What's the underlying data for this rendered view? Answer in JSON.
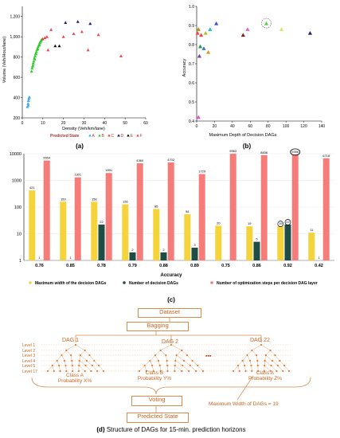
{
  "panel_a": {
    "caption": "(a)",
    "xlabel": "Density (Veh/km/lane)",
    "ylabel": "Volume (Veh/Hour/lane)",
    "xticks": [
      "0",
      "10",
      "20",
      "30",
      "40",
      "50",
      "60"
    ],
    "yticks": [
      "200",
      "400",
      "600",
      "800",
      "1,000",
      "1,200"
    ],
    "legend_title": "Predicted State",
    "legend_items": [
      "A",
      "B",
      "C",
      "D",
      "E",
      "F"
    ],
    "colors": {
      "A": "#3fa9e6",
      "B": "#33cc33",
      "C": "#e84a4a",
      "D": "#1f1f6e",
      "E": "#111111",
      "F": "#e84a4a"
    }
  },
  "panel_b": {
    "caption": "(b)",
    "xlabel": "Maximum Depth of Decision DAGs",
    "ylabel": "Accuracy",
    "xticks": [
      "0",
      "20",
      "40",
      "60",
      "80",
      "100",
      "120",
      "140"
    ],
    "yticks": [
      "0.4",
      "0.5",
      "0.6",
      "0.7",
      "0.8",
      "0.9",
      "1.0"
    ]
  },
  "panel_c": {
    "caption": "(c)",
    "xlabel": "Accuracy",
    "yticks": [
      "1",
      "10",
      "100",
      "1000",
      "10000"
    ],
    "legend": [
      "Maximum width of the decision DAGs",
      "Number of decision DAGs",
      "Number of optimization steps per decision DAG layer"
    ]
  },
  "panel_d": {
    "caption": "Structure of DAGs for 15-min. prediction horizons",
    "caption_prefix": "(d)",
    "dataset": "Dataset",
    "bagging": "Bagging",
    "dag1": "DAG 1",
    "dag2": "DAG 2",
    "dag22": "DAG 22",
    "ellipsis": "▪▪▪",
    "class1": "Class A",
    "prob1": "Probability X%",
    "class2": "Class B",
    "prob2": "Probability Y%",
    "class3": "Class A",
    "prob3": "Probability Z%",
    "voting": "Voting",
    "predicted": "Predicted State",
    "max_width": "Maximum Width of DAGs = 19",
    "levels": [
      "Level 1",
      "Level 2",
      "Level 3",
      "Level 4",
      "Level 5",
      "Level 17"
    ]
  },
  "chart_data": [
    {
      "type": "scatter",
      "title": "",
      "xlabel": "Density (Veh/km/lane)",
      "ylabel": "Volume (Veh/Hour/lane)",
      "xlim": [
        0,
        60
      ],
      "ylim": [
        200,
        1300
      ],
      "legend": "bottom",
      "series": [
        {
          "name": "A",
          "points": [
            [
              2.5,
              310
            ],
            [
              2.8,
              340
            ],
            [
              3.0,
              370
            ],
            [
              3.2,
              390
            ],
            [
              3.4,
              405
            ],
            [
              2.9,
              325
            ]
          ]
        },
        {
          "name": "B",
          "points": [
            [
              4.5,
              660
            ],
            [
              4.8,
              690
            ],
            [
              5,
              710
            ],
            [
              5.3,
              740
            ],
            [
              5.6,
              760
            ],
            [
              5.9,
              790
            ],
            [
              6.2,
              810
            ],
            [
              6.5,
              835
            ],
            [
              6.8,
              850
            ],
            [
              7.1,
              870
            ],
            [
              7.4,
              885
            ],
            [
              7.7,
              900
            ],
            [
              8.0,
              915
            ],
            [
              8.3,
              930
            ],
            [
              8.6,
              945
            ],
            [
              8.9,
              955
            ],
            [
              9.2,
              965
            ],
            [
              5.2,
              720
            ],
            [
              6.0,
              780
            ],
            [
              6.7,
              830
            ],
            [
              7.5,
              880
            ],
            [
              8.2,
              920
            ],
            [
              9.5,
              975
            ]
          ]
        },
        {
          "name": "C",
          "points": [
            [
              10,
              980
            ],
            [
              11,
              990
            ],
            [
              12,
              1000
            ],
            [
              12.5,
              870
            ]
          ]
        },
        {
          "name": "D",
          "points": [
            [
              21,
              1140
            ],
            [
              27,
              1150
            ],
            [
              33,
              1130
            ]
          ]
        },
        {
          "name": "E",
          "points": [
            [
              16,
              910
            ],
            [
              18,
              910
            ]
          ]
        },
        {
          "name": "F",
          "points": [
            [
              14,
              1070
            ],
            [
              20,
              1000
            ],
            [
              25,
              1030
            ],
            [
              29,
              1050
            ],
            [
              32,
              870
            ],
            [
              37,
              1020
            ],
            [
              48,
              810
            ]
          ]
        }
      ]
    },
    {
      "type": "scatter",
      "title": "",
      "xlabel": "Maximum Depth of Decision DAGs",
      "ylabel": "Accuracy",
      "xlim": [
        0,
        140
      ],
      "ylim": [
        0.4,
        1.0
      ],
      "series": [
        {
          "points": [
            [
              1,
              0.86
            ],
            [
              2,
              0.88
            ],
            [
              3,
              0.74
            ],
            [
              4,
              0.79
            ],
            [
              5,
              0.85
            ],
            [
              8,
              0.78
            ],
            [
              10,
              0.86
            ],
            [
              13,
              0.76
            ],
            [
              15,
              0.88
            ],
            [
              22,
              0.91
            ],
            [
              52,
              0.85
            ],
            [
              57,
              0.88
            ],
            [
              78,
              0.91
            ],
            [
              95,
              0.88
            ],
            [
              127,
              0.86
            ],
            [
              2,
              0.42
            ]
          ],
          "colors": [
            "#e84a4a",
            "#b8860b",
            "#7b3fa0",
            "#1a9e4a",
            "#e84a4a",
            "#3a6fd0",
            "#b0c020",
            "#e89020",
            "#20c0c0",
            "#3a4fd0",
            "#7a1f1f",
            "#e860c0",
            "#55cc44",
            "#e8e060",
            "#1f1f6e",
            "#e050d0"
          ]
        }
      ]
    },
    {
      "type": "bar",
      "title": "",
      "xlabel": "Accuracy",
      "categories": [
        "0.76",
        "0.85",
        "0.78",
        "0.79",
        "0.88",
        "0.89",
        "0.75",
        "0.86",
        "0.92",
        "0.42"
      ],
      "yscale": "log",
      "ylim": [
        1,
        10000
      ],
      "series": [
        {
          "name": "Maximum width of the decision DAGs",
          "values": [
            421,
            159,
            158,
            126,
            85,
            54,
            20,
            19,
            19,
            11
          ]
        },
        {
          "name": "Number of decision DAGs",
          "values": [
            1,
            1,
            22,
            2,
            2,
            3,
            1,
            5,
            22,
            1
          ]
        },
        {
          "name": "Number of optimization steps per decision DAG layer",
          "values": [
            5554,
            1301,
            1891,
            4360,
            4702,
            1729,
            9963,
            8836,
            9396,
            6718
          ]
        }
      ],
      "labels_shown": [
        [
          "421",
          "159",
          "158",
          "126",
          "85",
          "54",
          "20",
          "19",
          "19",
          "11"
        ],
        [
          "1",
          "1",
          "22",
          "2",
          "2",
          "3",
          "",
          "5",
          "22",
          "1"
        ],
        [
          "5554",
          "1301",
          "1891",
          "4360",
          "4702",
          "1729",
          "9963",
          "8836",
          "9396",
          "6718"
        ]
      ],
      "colors": [
        "#f5d33a",
        "#1d4d44",
        "#f57c78"
      ]
    }
  ]
}
